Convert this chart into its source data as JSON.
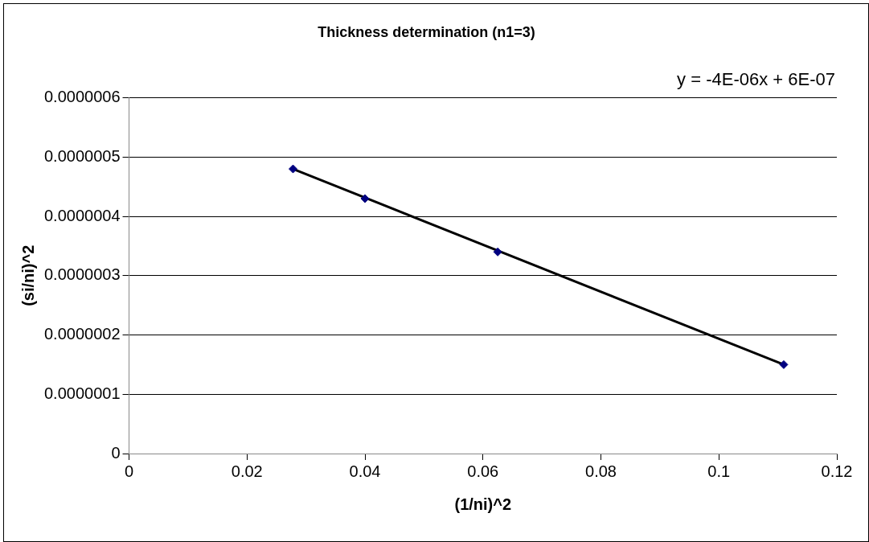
{
  "chart_data": {
    "type": "scatter",
    "title": "Thickness determination (n1=3)",
    "xlabel": "(1/ni)^2",
    "ylabel": "(si/ni)^2",
    "series": [
      {
        "type": "scatter",
        "color": "#000080",
        "x": [
          0.0278,
          0.04,
          0.0625,
          0.111
        ],
        "values": [
          4.8e-07,
          4.3e-07,
          3.4e-07,
          1.5e-07
        ],
        "marker": "diamond"
      },
      {
        "type": "line",
        "color": "#000000",
        "x": [
          0.0278,
          0.111
        ],
        "values": [
          4.8e-07,
          1.5e-07
        ],
        "marker": "none",
        "line_style": "solid"
      }
    ],
    "xlim": [
      0,
      0.12
    ],
    "xticks": [
      0,
      0.02,
      0.04,
      0.06,
      0.08,
      0.1,
      0.12
    ],
    "ylim": [
      0,
      6e-07
    ],
    "yticks": [
      0,
      {
        "value": 1e-07,
        "label": "0.0000001"
      },
      {
        "value": 2e-07,
        "label": "0.0000002"
      },
      {
        "value": 3e-07,
        "label": "0.0000003"
      },
      {
        "value": 4e-07,
        "label": "0.0000004"
      },
      {
        "value": 5e-07,
        "label": "0.0000005"
      },
      {
        "value": 6e-07,
        "label": "0.0000006"
      }
    ],
    "grid": "y",
    "legend": false,
    "annotations": [
      "y = -4E-06x + 6E-07"
    ]
  }
}
